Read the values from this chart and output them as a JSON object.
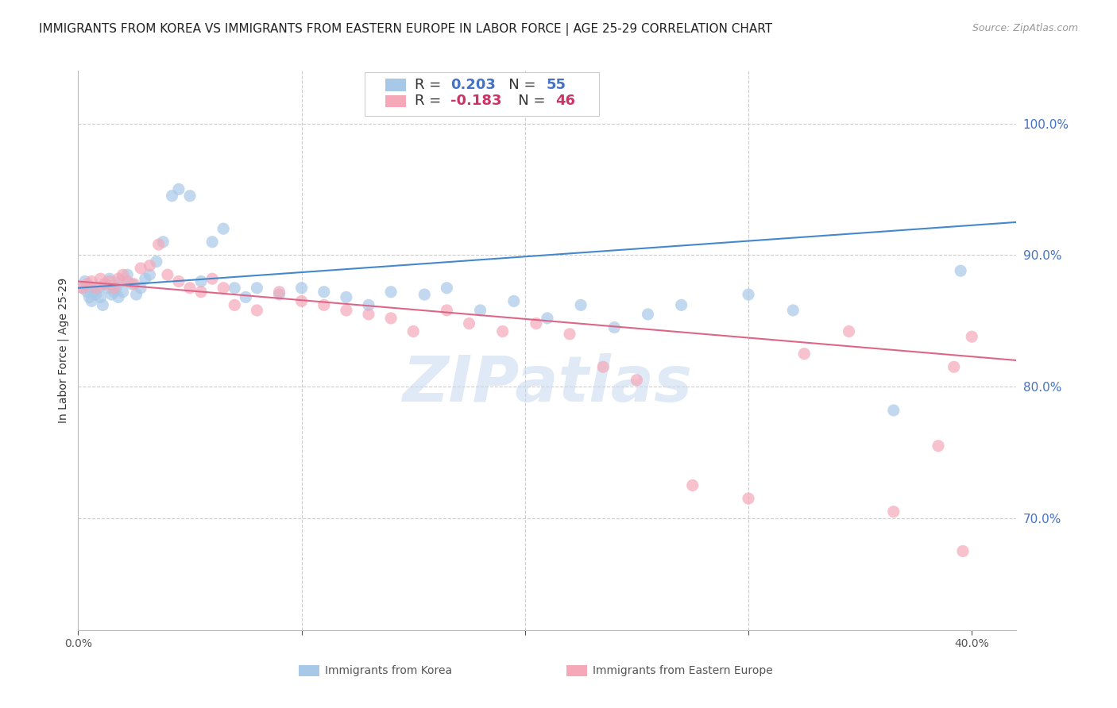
{
  "title": "IMMIGRANTS FROM KOREA VS IMMIGRANTS FROM EASTERN EUROPE IN LABOR FORCE | AGE 25-29 CORRELATION CHART",
  "source": "Source: ZipAtlas.com",
  "ylabel": "In Labor Force | Age 25-29",
  "xlim": [
    0.0,
    0.42
  ],
  "ylim": [
    0.615,
    1.04
  ],
  "ytick_values": [
    1.0,
    0.9,
    0.8,
    0.7
  ],
  "xtick_values": [
    0.0,
    0.1,
    0.2,
    0.3,
    0.4
  ],
  "xtick_labels": [
    "0.0%",
    "",
    "",
    "",
    "40.0%"
  ],
  "korea_R": 0.203,
  "korea_N": 55,
  "eastern_R": -0.183,
  "eastern_N": 46,
  "korea_color": "#a8c8e8",
  "eastern_color": "#f4a8b8",
  "korea_line_color": "#4488cc",
  "eastern_line_color": "#dd6688",
  "watermark": "ZIPatlas",
  "korea_x": [
    0.002,
    0.003,
    0.004,
    0.005,
    0.006,
    0.007,
    0.008,
    0.009,
    0.01,
    0.011,
    0.012,
    0.013,
    0.014,
    0.015,
    0.016,
    0.017,
    0.018,
    0.019,
    0.02,
    0.022,
    0.024,
    0.026,
    0.028,
    0.03,
    0.032,
    0.035,
    0.038,
    0.042,
    0.045,
    0.05,
    0.055,
    0.06,
    0.065,
    0.07,
    0.075,
    0.08,
    0.09,
    0.1,
    0.11,
    0.12,
    0.13,
    0.14,
    0.155,
    0.165,
    0.18,
    0.195,
    0.21,
    0.225,
    0.24,
    0.255,
    0.27,
    0.3,
    0.32,
    0.365,
    0.395
  ],
  "korea_y": [
    0.875,
    0.88,
    0.872,
    0.868,
    0.865,
    0.872,
    0.87,
    0.875,
    0.868,
    0.862,
    0.878,
    0.875,
    0.882,
    0.87,
    0.872,
    0.875,
    0.868,
    0.88,
    0.872,
    0.885,
    0.878,
    0.87,
    0.875,
    0.882,
    0.885,
    0.895,
    0.91,
    0.945,
    0.95,
    0.945,
    0.88,
    0.91,
    0.92,
    0.875,
    0.868,
    0.875,
    0.87,
    0.875,
    0.872,
    0.868,
    0.862,
    0.872,
    0.87,
    0.875,
    0.858,
    0.865,
    0.852,
    0.862,
    0.845,
    0.855,
    0.862,
    0.87,
    0.858,
    0.782,
    0.888
  ],
  "eastern_x": [
    0.002,
    0.004,
    0.006,
    0.008,
    0.01,
    0.012,
    0.014,
    0.016,
    0.018,
    0.02,
    0.022,
    0.025,
    0.028,
    0.032,
    0.036,
    0.04,
    0.045,
    0.05,
    0.055,
    0.06,
    0.065,
    0.07,
    0.08,
    0.09,
    0.1,
    0.11,
    0.12,
    0.13,
    0.14,
    0.15,
    0.165,
    0.175,
    0.19,
    0.205,
    0.22,
    0.235,
    0.25,
    0.275,
    0.3,
    0.325,
    0.345,
    0.365,
    0.385,
    0.392,
    0.396,
    0.4
  ],
  "eastern_y": [
    0.875,
    0.878,
    0.88,
    0.875,
    0.882,
    0.878,
    0.88,
    0.875,
    0.882,
    0.885,
    0.88,
    0.878,
    0.89,
    0.892,
    0.908,
    0.885,
    0.88,
    0.875,
    0.872,
    0.882,
    0.875,
    0.862,
    0.858,
    0.872,
    0.865,
    0.862,
    0.858,
    0.855,
    0.852,
    0.842,
    0.858,
    0.848,
    0.842,
    0.848,
    0.84,
    0.815,
    0.805,
    0.725,
    0.715,
    0.825,
    0.842,
    0.705,
    0.755,
    0.815,
    0.675,
    0.838
  ],
  "title_fontsize": 11,
  "axis_fontsize": 10,
  "tick_fontsize": 10,
  "legend_fontsize": 13
}
